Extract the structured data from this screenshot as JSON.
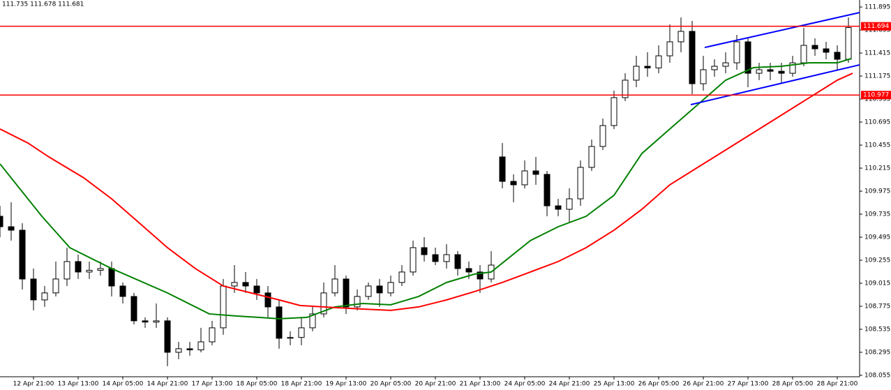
{
  "chart_data": {
    "type": "candlestick",
    "header": "111.735 111.678 111.681",
    "candle_up_color": "#ffffff",
    "candle_down_color": "#000000",
    "candle_line_color": "#000000",
    "xlim": [
      0,
      77
    ],
    "ylim": [
      108.04,
      111.968
    ],
    "xticks": [
      {
        "value": 3,
        "label": "12 Apr 21:00"
      },
      {
        "value": 7,
        "label": "13 Apr 13:00"
      },
      {
        "value": 11,
        "label": "14 Apr 05:00"
      },
      {
        "value": 15,
        "label": "14 Apr 21:00"
      },
      {
        "value": 19,
        "label": "17 Apr 13:00"
      },
      {
        "value": 23,
        "label": "18 Apr 05:00"
      },
      {
        "value": 27,
        "label": "18 Apr 21:00"
      },
      {
        "value": 31,
        "label": "19 Apr 13:00"
      },
      {
        "value": 35,
        "label": "20 Apr 05:00"
      },
      {
        "value": 39,
        "label": "20 Apr 21:00"
      },
      {
        "value": 43,
        "label": "21 Apr 13:00"
      },
      {
        "value": 47,
        "label": "24 Apr 05:00"
      },
      {
        "value": 51,
        "label": "24 Apr 21:00"
      },
      {
        "value": 55,
        "label": "25 Apr 13:00"
      },
      {
        "value": 59,
        "label": "26 Apr 05:00"
      },
      {
        "value": 63,
        "label": "26 Apr 21:00"
      },
      {
        "value": 67,
        "label": "27 Apr 13:00"
      },
      {
        "value": 71,
        "label": "28 Apr 05:00"
      },
      {
        "value": 75,
        "label": "28 Apr 21:00"
      }
    ],
    "yticks": [
      111.895,
      111.655,
      111.415,
      111.175,
      110.935,
      110.695,
      110.455,
      110.215,
      109.975,
      109.735,
      109.495,
      109.255,
      109.015,
      108.775,
      108.535,
      108.295,
      108.055
    ],
    "candles": {
      "open": [
        109.713,
        109.604,
        109.568,
        109.059,
        108.841,
        108.914,
        109.059,
        109.241,
        109.132,
        109.15,
        109.168,
        108.986,
        108.877,
        108.623,
        108.61,
        108.623,
        108.295,
        108.332,
        108.32,
        108.404,
        108.55,
        108.986,
        109.023,
        108.986,
        108.914,
        108.768,
        108.441,
        108.45,
        108.55,
        108.695,
        108.914,
        109.059,
        108.768,
        108.877,
        108.986,
        108.914,
        109.023,
        109.132,
        109.386,
        109.313,
        109.241,
        109.313,
        109.168,
        109.132,
        109.059,
        110.332,
        110.077,
        110.041,
        110.186,
        110.15,
        109.822,
        109.786,
        109.895,
        110.223,
        110.441,
        110.659,
        110.95,
        111.132,
        111.277,
        111.26,
        111.386,
        111.532,
        111.641,
        111.095,
        111.241,
        111.277,
        111.313,
        111.532,
        111.204,
        111.241,
        111.225,
        111.204,
        111.313,
        111.495,
        111.459,
        111.423,
        111.35
      ],
      "high": [
        109.822,
        109.859,
        109.641,
        109.168,
        108.986,
        109.241,
        109.386,
        109.313,
        109.241,
        109.241,
        109.241,
        109.023,
        108.914,
        108.659,
        108.804,
        108.659,
        108.404,
        108.404,
        108.55,
        108.623,
        109.059,
        109.204,
        109.132,
        109.059,
        108.986,
        108.841,
        108.514,
        108.659,
        108.768,
        109.023,
        109.204,
        109.095,
        108.95,
        109.023,
        109.059,
        109.095,
        109.204,
        109.459,
        109.495,
        109.386,
        109.423,
        109.35,
        109.241,
        109.204,
        109.35,
        110.477,
        110.15,
        110.295,
        110.332,
        110.186,
        109.895,
        110.004,
        110.295,
        110.513,
        110.732,
        111.023,
        111.204,
        111.386,
        111.423,
        111.495,
        111.713,
        111.786,
        111.75,
        111.386,
        111.35,
        111.423,
        111.604,
        111.568,
        111.313,
        111.313,
        111.313,
        111.386,
        111.677,
        111.568,
        111.532,
        111.495,
        111.786
      ],
      "low": [
        109.495,
        109.459,
        108.95,
        108.732,
        108.768,
        108.877,
        108.986,
        109.059,
        109.059,
        109.095,
        108.877,
        108.804,
        108.586,
        108.55,
        108.55,
        108.15,
        108.223,
        108.259,
        108.295,
        108.368,
        108.477,
        108.914,
        108.914,
        108.841,
        108.659,
        108.332,
        108.368,
        108.368,
        108.514,
        108.659,
        108.877,
        108.695,
        108.732,
        108.841,
        108.768,
        108.877,
        108.986,
        109.095,
        109.241,
        109.204,
        109.168,
        109.095,
        109.059,
        108.914,
        109.023,
        110.004,
        109.859,
        110.004,
        110.041,
        109.713,
        109.713,
        109.641,
        109.822,
        110.186,
        110.404,
        110.622,
        110.913,
        111.059,
        111.168,
        111.204,
        111.313,
        111.423,
        110.986,
        111.023,
        111.168,
        111.204,
        111.241,
        111.059,
        111.132,
        111.132,
        111.095,
        111.168,
        111.277,
        111.386,
        111.35,
        111.241,
        111.313
      ],
      "close": [
        109.604,
        109.568,
        109.059,
        108.841,
        108.914,
        109.059,
        109.241,
        109.132,
        109.15,
        109.168,
        108.986,
        108.877,
        108.623,
        108.61,
        108.623,
        108.295,
        108.332,
        108.32,
        108.404,
        108.55,
        108.986,
        109.023,
        108.986,
        108.914,
        108.768,
        108.441,
        108.45,
        108.55,
        108.695,
        108.914,
        109.059,
        108.768,
        108.877,
        108.986,
        108.914,
        109.023,
        109.132,
        109.386,
        109.313,
        109.241,
        109.313,
        109.168,
        109.132,
        109.059,
        109.204,
        110.077,
        110.041,
        110.186,
        110.15,
        109.822,
        109.786,
        109.895,
        110.223,
        110.441,
        110.659,
        110.95,
        111.132,
        111.277,
        111.26,
        111.386,
        111.532,
        111.641,
        111.095,
        111.241,
        111.277,
        111.313,
        111.532,
        111.204,
        111.241,
        111.225,
        111.204,
        111.313,
        111.495,
        111.459,
        111.423,
        111.35,
        111.681
      ]
    },
    "series": [
      {
        "color": "#008000",
        "x": [
          0,
          1.25,
          3.75,
          6.25,
          10,
          15,
          18.75,
          21.25,
          25,
          27.5,
          30,
          32.5,
          35,
          37.5,
          40,
          42.5,
          44,
          47.5,
          50,
          52.5,
          55,
          57.5,
          60,
          62.5,
          65,
          67.5,
          70,
          72.5,
          75,
          76.25
        ],
        "values": [
          110.259,
          110.077,
          109.713,
          109.386,
          109.168,
          108.914,
          108.695,
          108.673,
          108.645,
          108.659,
          108.768,
          108.804,
          108.79,
          108.877,
          109.023,
          109.11,
          109.132,
          109.459,
          109.604,
          109.713,
          109.932,
          110.368,
          110.623,
          110.877,
          111.132,
          111.263,
          111.277,
          111.313,
          111.313,
          111.357
        ]
      },
      {
        "color": "#ff0000",
        "x": [
          0,
          2.5,
          4.375,
          7.5,
          10,
          12.5,
          15,
          17.5,
          20,
          22.5,
          25,
          26.875,
          30,
          32.5,
          35,
          37.5,
          40,
          42.5,
          45,
          47.5,
          50,
          52.5,
          55,
          57.5,
          60,
          62.5,
          65,
          67.5,
          70,
          72.5,
          75,
          76.375
        ],
        "values": [
          110.623,
          110.477,
          110.332,
          110.114,
          109.895,
          109.641,
          109.386,
          109.168,
          108.986,
          108.914,
          108.841,
          108.783,
          108.761,
          108.746,
          108.732,
          108.768,
          108.841,
          108.928,
          109.023,
          109.132,
          109.241,
          109.386,
          109.568,
          109.786,
          110.041,
          110.223,
          110.404,
          110.586,
          110.768,
          110.95,
          111.132,
          111.204
        ]
      },
      {
        "color": "#0000ff",
        "x": [
          63.125,
          77
        ],
        "values": [
          111.473,
          111.837
        ]
      },
      {
        "color": "#0000ff",
        "x": [
          61.875,
          77
        ],
        "values": [
          110.877,
          111.292
        ]
      }
    ],
    "hlines": [
      {
        "value": 111.694,
        "color": "#ff0000"
      },
      {
        "value": 110.977,
        "color": "#ff0000"
      }
    ]
  }
}
